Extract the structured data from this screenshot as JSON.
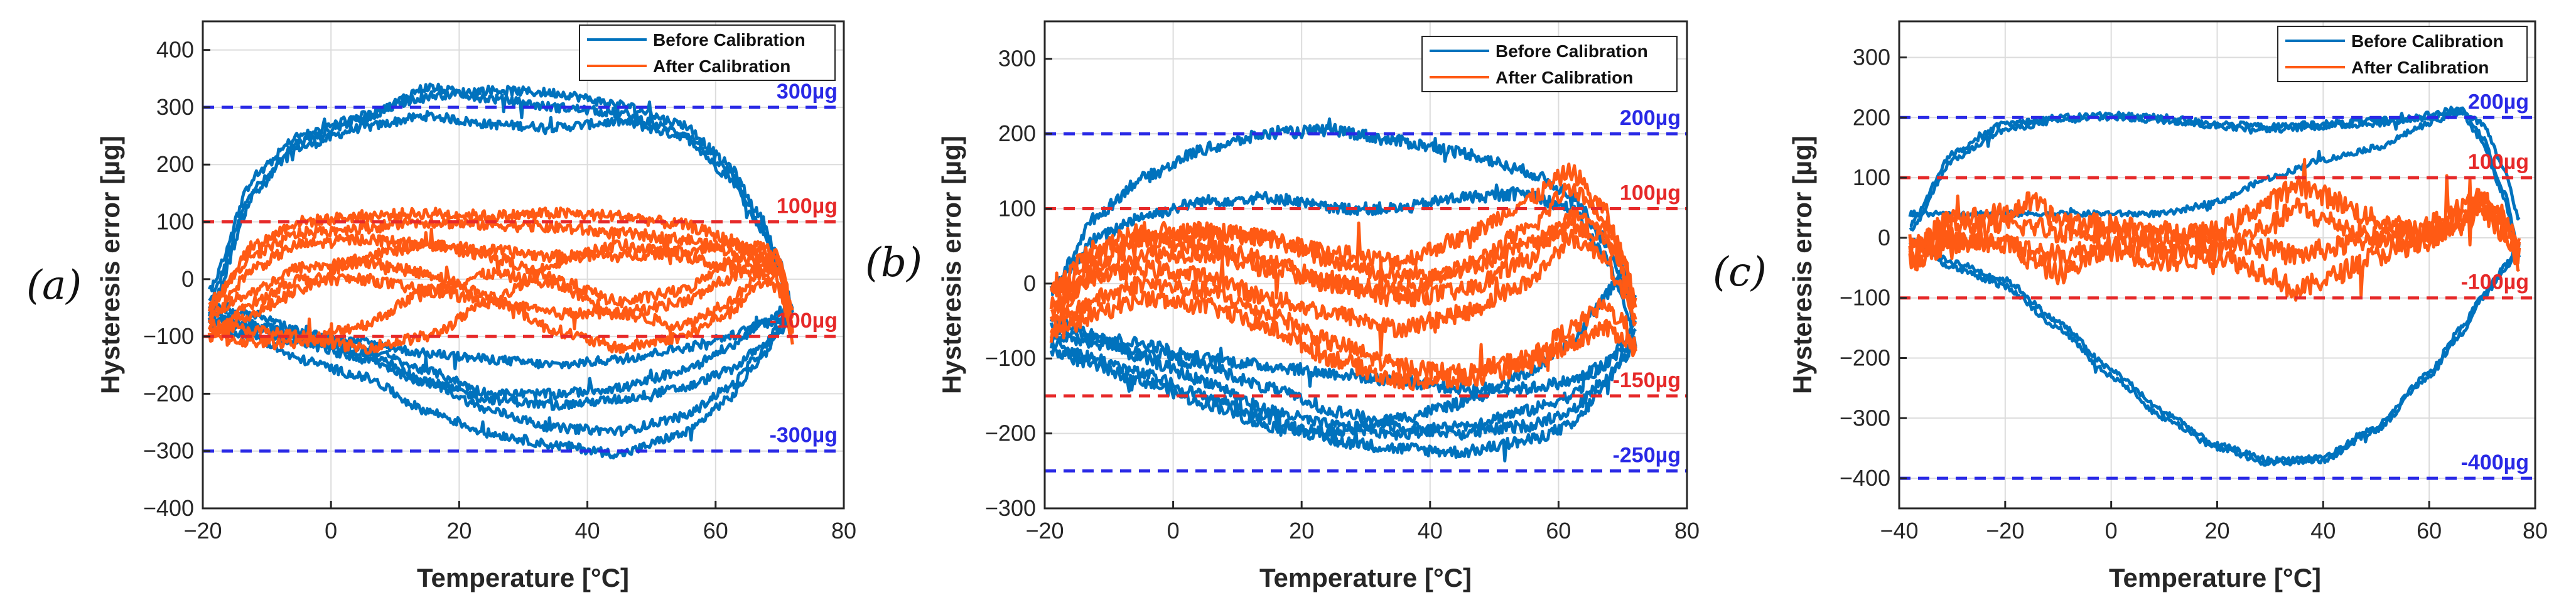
{
  "figure": {
    "colors": {
      "before": "#0072BD",
      "after": "#FF5A14",
      "blue_line": "#2929E6",
      "red_line": "#E62929",
      "grid": "#DCDCDC"
    }
  },
  "chart_data": [
    {
      "type": "line",
      "panel_label": "(a)",
      "xlabel": "Temperature [°C]",
      "ylabel": "Hysteresis error [µg]",
      "xlim": [
        -20,
        80
      ],
      "ylim": [
        -400,
        450
      ],
      "xticks": [
        -20,
        0,
        20,
        40,
        60,
        80
      ],
      "yticks": [
        -400,
        -300,
        -200,
        -100,
        0,
        100,
        200,
        300,
        400
      ],
      "legend": [
        "Before Calibration",
        "After Calibration"
      ],
      "thresholds": [
        {
          "value": 300,
          "label": "300µg",
          "color": "blue"
        },
        {
          "value": 100,
          "label": "100µg",
          "color": "red"
        },
        {
          "value": -100,
          "label": "-100µg",
          "color": "red"
        },
        {
          "value": -300,
          "label": "-300µg",
          "color": "blue"
        }
      ],
      "series": [
        {
          "name": "Before Calibration",
          "noise": 8,
          "x": [
            -19,
            -12,
            -5,
            5,
            15,
            25,
            35,
            45,
            55,
            62,
            67,
            70,
            72
          ],
          "curves": [
            [
              -40,
              160,
              230,
              265,
              285,
              270,
              265,
              275,
              250,
              180,
              90,
              20,
              -60
            ],
            [
              -20,
              180,
              250,
              285,
              320,
              330,
              325,
              305,
              270,
              200,
              110,
              30,
              -50
            ],
            [
              -60,
              150,
              240,
              280,
              335,
              315,
              300,
              290,
              255,
              190,
              100,
              10,
              -70
            ],
            [
              -70,
              -90,
              -110,
              -140,
              -180,
              -210,
              -220,
              -210,
              -190,
              -160,
              -120,
              -90,
              -70
            ],
            [
              -60,
              -80,
              -100,
              -130,
              -180,
              -230,
              -260,
              -265,
              -240,
              -190,
              -130,
              -80,
              -60
            ],
            [
              -50,
              -60,
              -90,
              -120,
              -160,
              -200,
              -200,
              -190,
              -160,
              -120,
              -80,
              -60,
              -50
            ],
            [
              -80,
              -100,
              -140,
              -170,
              -230,
              -270,
              -290,
              -305,
              -270,
              -210,
              -140,
              -90,
              -70
            ],
            [
              -70,
              -80,
              -100,
              -110,
              -130,
              -140,
              -150,
              -140,
              -120,
              -100,
              -80,
              -70,
              -60
            ]
          ]
        },
        {
          "name": "After Calibration",
          "noise": 10,
          "x": [
            -19,
            -12,
            -5,
            5,
            15,
            25,
            35,
            45,
            55,
            62,
            67,
            70,
            72
          ],
          "curves": [
            [
              -50,
              60,
              100,
              110,
              115,
              110,
              115,
              110,
              95,
              70,
              40,
              10,
              -60
            ],
            [
              -40,
              40,
              80,
              90,
              100,
              95,
              90,
              80,
              70,
              50,
              30,
              0,
              -80
            ],
            [
              -90,
              -60,
              -20,
              40,
              60,
              50,
              40,
              40,
              50,
              60,
              50,
              20,
              -90
            ],
            [
              -100,
              -110,
              -110,
              -80,
              -20,
              10,
              -10,
              -60,
              -80,
              -40,
              10,
              20,
              -70
            ],
            [
              -80,
              -90,
              -100,
              -120,
              -100,
              -40,
              30,
              60,
              40,
              20,
              10,
              -20,
              -100
            ],
            [
              -60,
              -20,
              20,
              30,
              10,
              -30,
              -90,
              -120,
              -100,
              -60,
              -10,
              10,
              -110
            ],
            [
              -70,
              20,
              60,
              70,
              60,
              40,
              0,
              -40,
              -20,
              30,
              60,
              40,
              -60
            ],
            [
              -100,
              -40,
              0,
              0,
              -20,
              -40,
              -60,
              -60,
              -40,
              0,
              30,
              30,
              -90
            ]
          ]
        }
      ]
    },
    {
      "type": "line",
      "panel_label": "(b)",
      "xlabel": "Temperature [°C]",
      "ylabel": "Hysteresis error [µg]",
      "xlim": [
        -20,
        80
      ],
      "ylim": [
        -300,
        350
      ],
      "xticks": [
        -20,
        0,
        20,
        40,
        60,
        80
      ],
      "yticks": [
        -300,
        -200,
        -100,
        0,
        100,
        200,
        300
      ],
      "legend": [
        "Before Calibration",
        "After Calibration"
      ],
      "thresholds": [
        {
          "value": 200,
          "label": "200µg",
          "color": "blue"
        },
        {
          "value": 100,
          "label": "100µg",
          "color": "red"
        },
        {
          "value": -150,
          "label": "-150µg",
          "color": "red"
        },
        {
          "value": -250,
          "label": "-250µg",
          "color": "blue"
        }
      ],
      "series": [
        {
          "name": "Before Calibration",
          "noise": 8,
          "x": [
            -19,
            -12,
            -5,
            5,
            15,
            25,
            35,
            45,
            55,
            62,
            67,
            70,
            72
          ],
          "curves": [
            [
              -10,
              90,
              140,
              180,
              200,
              205,
              190,
              175,
              150,
              120,
              60,
              0,
              -60
            ],
            [
              -10,
              60,
              90,
              110,
              115,
              100,
              100,
              115,
              120,
              100,
              40,
              -20,
              -80
            ],
            [
              -70,
              -80,
              -90,
              -110,
              -140,
              -170,
              -190,
              -200,
              -190,
              -170,
              -130,
              -100,
              -80
            ],
            [
              -80,
              -100,
              -120,
              -150,
              -180,
              -210,
              -220,
              -225,
              -210,
              -190,
              -140,
              -100,
              -80
            ],
            [
              -60,
              -70,
              -80,
              -100,
              -110,
              -120,
              -130,
              -140,
              -140,
              -130,
              -110,
              -90,
              -80
            ],
            [
              -50,
              -70,
              -100,
              -130,
              -170,
              -190,
              -200,
              -190,
              -170,
              -150,
              -110,
              -80,
              -60
            ],
            [
              -90,
              -110,
              -130,
              -160,
              -190,
              -200,
              -180,
              -160,
              -120,
              -80,
              -20,
              20,
              -20
            ]
          ]
        },
        {
          "name": "After Calibration",
          "noise": 12,
          "x": [
            -19,
            -12,
            -5,
            5,
            15,
            25,
            35,
            45,
            55,
            62,
            67,
            70,
            72
          ],
          "curves": [
            [
              -40,
              30,
              60,
              70,
              60,
              40,
              30,
              60,
              110,
              150,
              100,
              40,
              -30
            ],
            [
              -50,
              20,
              40,
              40,
              20,
              0,
              -10,
              20,
              70,
              130,
              90,
              30,
              -40
            ],
            [
              -30,
              10,
              20,
              10,
              -20,
              -40,
              -60,
              -40,
              0,
              60,
              40,
              -10,
              -60
            ],
            [
              -60,
              -20,
              0,
              -10,
              -40,
              -80,
              -110,
              -120,
              -100,
              -60,
              -30,
              -50,
              -80
            ],
            [
              -20,
              40,
              60,
              50,
              30,
              0,
              -20,
              -10,
              30,
              90,
              70,
              20,
              -50
            ],
            [
              -70,
              -40,
              -20,
              -30,
              -60,
              -100,
              -130,
              -130,
              -110,
              -80,
              -60,
              -70,
              -90
            ],
            [
              -10,
              50,
              70,
              70,
              60,
              30,
              10,
              20,
              50,
              80,
              60,
              30,
              -20
            ]
          ]
        }
      ]
    },
    {
      "type": "line",
      "panel_label": "(c)",
      "xlabel": "Temperature [°C]",
      "ylabel": "Hysteresis error [µg]",
      "xlim": [
        -40,
        80
      ],
      "ylim": [
        -450,
        360
      ],
      "xticks": [
        -40,
        -20,
        0,
        20,
        40,
        60,
        80
      ],
      "yticks": [
        -400,
        -300,
        -200,
        -100,
        0,
        100,
        200,
        300
      ],
      "legend": [
        "Before Calibration",
        "After Calibration"
      ],
      "thresholds": [
        {
          "value": 200,
          "label": "200µg",
          "color": "blue"
        },
        {
          "value": 100,
          "label": "100µg",
          "color": "red"
        },
        {
          "value": -100,
          "label": "-100µg",
          "color": "red"
        },
        {
          "value": -400,
          "label": "-400µg",
          "color": "blue"
        }
      ],
      "series": [
        {
          "name": "Before Calibration",
          "noise": 5,
          "x": [
            -38,
            -30,
            -20,
            -10,
            0,
            10,
            20,
            30,
            40,
            50,
            60,
            66,
            70,
            74,
            77
          ],
          "curves": [
            [
              20,
              140,
              190,
              200,
              205,
              200,
              190,
              185,
              190,
              195,
              205,
              215,
              170,
              80,
              -20
            ],
            [
              0,
              -50,
              -80,
              -150,
              -230,
              -300,
              -350,
              -375,
              -370,
              -320,
              -230,
              -160,
              -100,
              -60,
              -20
            ],
            [
              10,
              130,
              180,
              195,
              200,
              195,
              185,
              180,
              185,
              190,
              200,
              210,
              160,
              70,
              -30
            ],
            [
              -10,
              -40,
              -70,
              -140,
              -220,
              -290,
              -345,
              -370,
              -365,
              -315,
              -225,
              -150,
              -95,
              -50,
              -10
            ],
            [
              40,
              40,
              40,
              40,
              40,
              40,
              60,
              100,
              130,
              150,
              190,
              210,
              190,
              120,
              30
            ]
          ]
        },
        {
          "name": "After Calibration",
          "noise": 18,
          "x": [
            -38,
            -30,
            -20,
            -15,
            -10,
            0,
            10,
            20,
            30,
            35,
            40,
            50,
            60,
            66,
            70,
            74,
            77
          ],
          "curves": [
            [
              -20,
              30,
              40,
              60,
              30,
              20,
              10,
              0,
              -20,
              -30,
              -20,
              0,
              20,
              50,
              70,
              40,
              -20
            ],
            [
              -40,
              -10,
              0,
              -40,
              -60,
              -20,
              -40,
              -30,
              -60,
              -90,
              -70,
              -30,
              0,
              30,
              50,
              20,
              -40
            ],
            [
              -10,
              20,
              20,
              20,
              10,
              10,
              0,
              10,
              60,
              90,
              70,
              30,
              10,
              40,
              60,
              30,
              -10
            ],
            [
              -30,
              0,
              -10,
              -20,
              -30,
              -10,
              -20,
              -20,
              20,
              50,
              30,
              0,
              -10,
              20,
              40,
              10,
              -30
            ]
          ]
        }
      ]
    }
  ]
}
